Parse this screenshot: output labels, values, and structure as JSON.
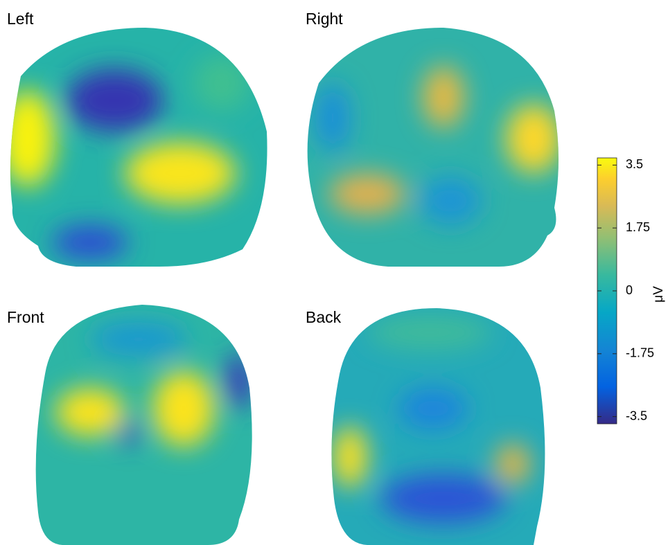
{
  "panels": [
    {
      "label": "Left"
    },
    {
      "label": "Right"
    },
    {
      "label": "Front"
    },
    {
      "label": "Back"
    }
  ],
  "colorbar": {
    "label": "μV",
    "lim": [
      -3.7,
      3.7
    ],
    "ticks": [
      3.5,
      1.75,
      0,
      -1.75,
      -3.5
    ]
  }
}
